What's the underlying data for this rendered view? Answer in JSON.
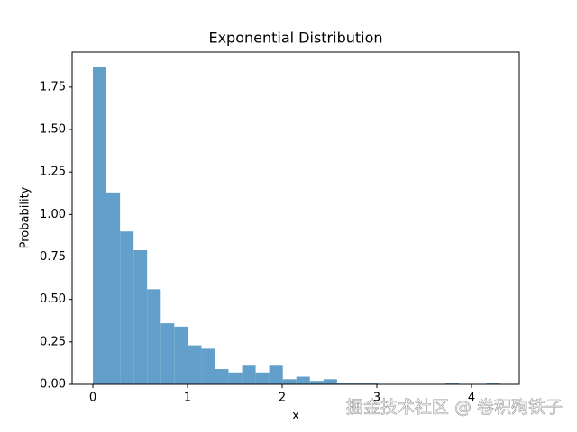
{
  "chart_data": {
    "type": "histogram",
    "title": "Exponential Distribution",
    "x_label": "x",
    "y_label": "Probability",
    "bins": [
      0,
      0.143,
      0.287,
      0.43,
      0.573,
      0.717,
      0.86,
      1.003,
      1.147,
      1.29,
      1.433,
      1.577,
      1.72,
      1.863,
      2.007,
      2.15,
      2.293,
      2.437,
      2.58,
      2.723,
      2.867,
      3.01,
      3.153,
      3.297,
      3.44,
      3.583,
      3.727,
      3.87,
      4.013,
      4.157,
      4.3
    ],
    "values": [
      1.87,
      1.13,
      0.9,
      0.79,
      0.56,
      0.36,
      0.34,
      0.23,
      0.21,
      0.09,
      0.07,
      0.11,
      0.07,
      0.11,
      0.03,
      0.045,
      0.02,
      0.03,
      0.005,
      0.005,
      0.005,
      0,
      0,
      0,
      0,
      0,
      0.005,
      0,
      0,
      0.005
    ],
    "color": "#62a0cb",
    "xlim": [
      -0.219,
      4.505
    ],
    "xticks": [
      0,
      1,
      2,
      3,
      4
    ],
    "ylim": [
      0,
      1.956
    ],
    "yticks": [
      {
        "value": 0,
        "label": "0.00"
      },
      0.25,
      {
        "value": 0.5,
        "label": "0.50"
      },
      0.75,
      {
        "value": 1,
        "label": "1.00"
      },
      1.25,
      {
        "value": 1.5,
        "label": "1.50"
      },
      1.75
    ],
    "watermark": "掘金技术社区 @ 卷积殉铁子"
  }
}
